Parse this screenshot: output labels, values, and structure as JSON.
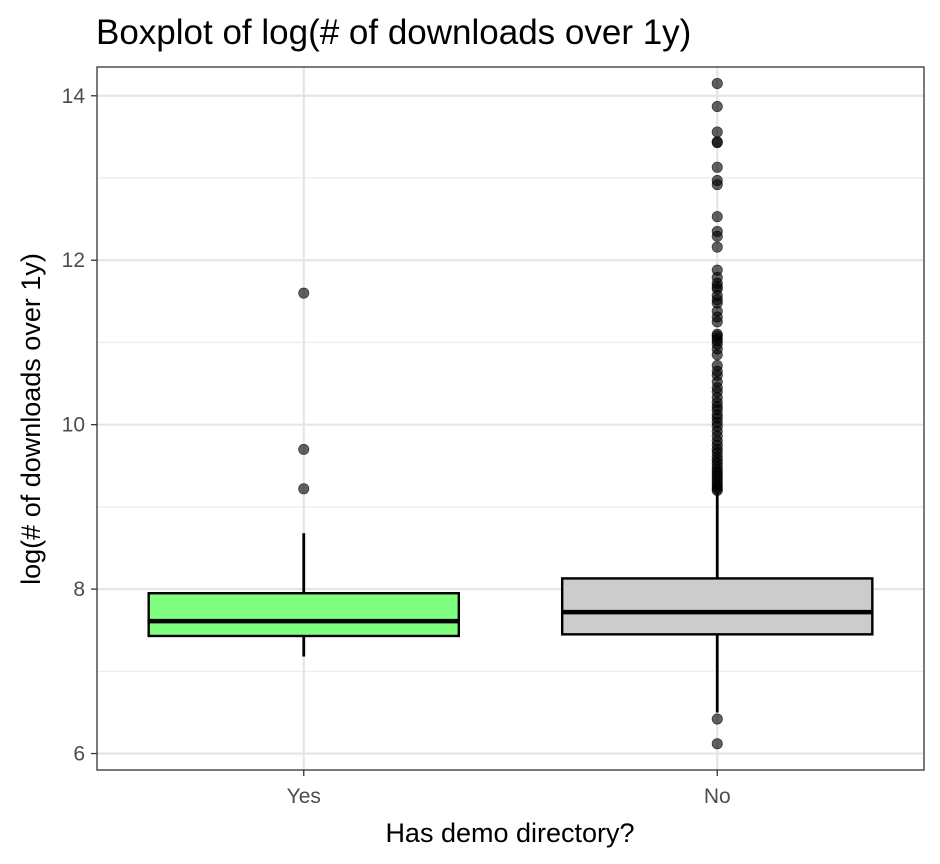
{
  "chart_data": {
    "type": "boxplot",
    "title": "Boxplot of log(# of downloads over 1y)",
    "xlabel": "Has demo directory?",
    "ylabel": "log(# of downloads over 1y)",
    "ylim": [
      5.8,
      14.35
    ],
    "y_ticks": [
      6,
      8,
      10,
      12,
      14
    ],
    "grid": true,
    "categories": [
      "Yes",
      "No"
    ],
    "boxes": [
      {
        "category": "Yes",
        "fill": "#7fff7f",
        "whisker_low": 7.18,
        "q1": 7.43,
        "median": 7.61,
        "q3": 7.95,
        "whisker_high": 8.68,
        "outliers": [
          11.6,
          9.7,
          9.22
        ]
      },
      {
        "category": "No",
        "fill": "#cccccc",
        "whisker_low": 6.5,
        "q1": 7.45,
        "median": 7.72,
        "q3": 8.13,
        "whisker_high": 9.17,
        "outliers": [
          14.15,
          13.87,
          13.56,
          13.44,
          13.43,
          13.13,
          12.97,
          12.92,
          12.53,
          12.35,
          12.29,
          12.16,
          11.88,
          11.79,
          11.72,
          11.68,
          11.65,
          11.57,
          11.52,
          11.48,
          11.38,
          11.31,
          11.25,
          11.1,
          11.08,
          11.05,
          11.02,
          10.98,
          10.92,
          10.85,
          10.72,
          10.65,
          10.6,
          10.52,
          10.45,
          10.4,
          10.33,
          10.27,
          10.22,
          10.18,
          10.12,
          10.08,
          10.03,
          9.98,
          9.92,
          9.86,
          9.8,
          9.75,
          9.7,
          9.66,
          9.61,
          9.57,
          9.53,
          9.49,
          9.45,
          9.42,
          9.39,
          9.36,
          9.33,
          9.3,
          9.27,
          9.24,
          9.22,
          9.2,
          6.42,
          6.12
        ]
      }
    ]
  }
}
